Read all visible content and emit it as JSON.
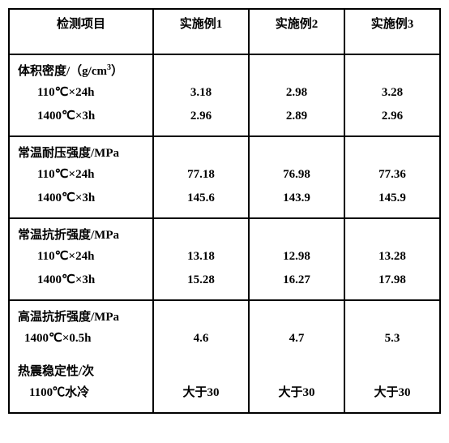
{
  "headers": {
    "c0": "检测项目",
    "c1": "实施例1",
    "c2": "实施例2",
    "c3": "实施例3"
  },
  "sections": [
    {
      "title_pre": "体积密度/（g/cm",
      "title_sup": "3",
      "title_post": "）",
      "rows": [
        {
          "label": "110℃×24h",
          "v1": "3.18",
          "v2": "2.98",
          "v3": "3.28"
        },
        {
          "label": "1400℃×3h",
          "v1": "2.96",
          "v2": "2.89",
          "v3": "2.96"
        }
      ]
    },
    {
      "title": "常温耐压强度/MPa",
      "rows": [
        {
          "label": "110℃×24h",
          "v1": "77.18",
          "v2": "76.98",
          "v3": "77.36"
        },
        {
          "label": "1400℃×3h",
          "v1": "145.6",
          "v2": "143.9",
          "v3": "145.9"
        }
      ]
    },
    {
      "title": "常温抗折强度/MPa",
      "rows": [
        {
          "label": "110℃×24h",
          "v1": "13.18",
          "v2": "12.98",
          "v3": "13.28"
        },
        {
          "label": "1400℃×3h",
          "v1": "15.28",
          "v2": "16.27",
          "v3": "17.98"
        }
      ]
    }
  ],
  "combo": {
    "group1": {
      "title": "高温抗折强度/MPa",
      "label": "1400℃×0.5h",
      "v1": "4.6",
      "v2": "4.7",
      "v3": "5.3",
      "label_indent": "18px"
    },
    "group2": {
      "title": "热震稳定性/次",
      "label": "1100℃水冷",
      "v1": "大于30",
      "v2": "大于30",
      "v3": "大于30",
      "label_indent": "24px"
    }
  }
}
